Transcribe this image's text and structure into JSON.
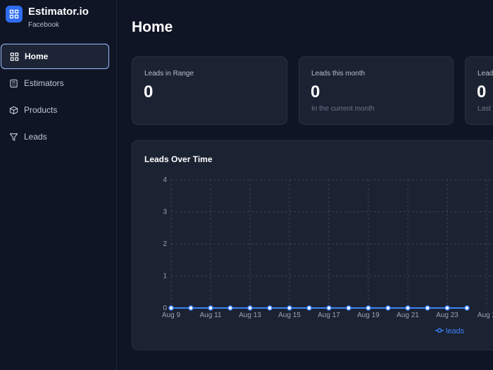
{
  "brand": {
    "title": "Estimator.io",
    "subtitle": "Facebook",
    "logo_icon": "grid-icon",
    "logo_color": "#2f6df0"
  },
  "sidebar": {
    "items": [
      {
        "label": "Home",
        "icon": "grid-icon",
        "active": true
      },
      {
        "label": "Estimators",
        "icon": "calculator-icon",
        "active": false
      },
      {
        "label": "Products",
        "icon": "box-icon",
        "active": false
      },
      {
        "label": "Leads",
        "icon": "filter-icon",
        "active": false
      }
    ]
  },
  "page": {
    "title": "Home"
  },
  "stats": [
    {
      "label": "Leads in Range",
      "value": "0",
      "sub": ""
    },
    {
      "label": "Leads this month",
      "value": "0",
      "sub": "In the current month"
    },
    {
      "label": "Lead",
      "value": "0",
      "sub": "Last"
    }
  ],
  "chart_data": {
    "type": "line",
    "title": "Leads Over Time",
    "x": [
      "Aug 9",
      "Aug 10",
      "Aug 11",
      "Aug 12",
      "Aug 13",
      "Aug 14",
      "Aug 15",
      "Aug 16",
      "Aug 17",
      "Aug 18",
      "Aug 19",
      "Aug 20",
      "Aug 21",
      "Aug 22",
      "Aug 23",
      "Aug 24"
    ],
    "x_tick_labels": [
      "Aug 9",
      "Aug 11",
      "Aug 13",
      "Aug 15",
      "Aug 17",
      "Aug 19",
      "Aug 21",
      "Aug 23",
      "Aug 2"
    ],
    "series": [
      {
        "name": "leads",
        "values": [
          0,
          0,
          0,
          0,
          0,
          0,
          0,
          0,
          0,
          0,
          0,
          0,
          0,
          0,
          0,
          0
        ],
        "color": "#3b82f6"
      }
    ],
    "ylim": [
      0,
      4
    ],
    "y_ticks": [
      0,
      1,
      2,
      3,
      4
    ],
    "grid": true,
    "legend": "bottom-right"
  }
}
